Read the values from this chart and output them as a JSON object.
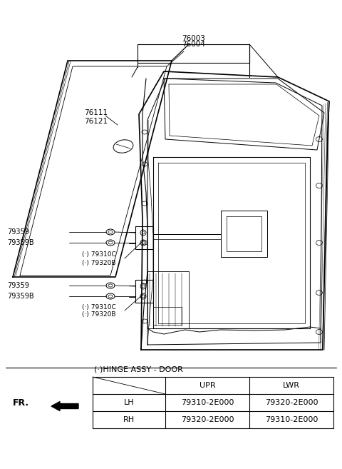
{
  "table_title": "(·)HINGE ASSY - DOOR",
  "table_headers": [
    "",
    "UPR",
    "LWR"
  ],
  "table_rows": [
    [
      "LH",
      "79310-2E000",
      "79320-2E000"
    ],
    [
      "RH",
      "79320-2E000",
      "79310-2E000"
    ]
  ],
  "fr_label": "FR.",
  "bg_color": "#ffffff",
  "lc": "#000000",
  "tc": "#000000",
  "part_76003": "76003",
  "part_76004": "76004",
  "part_76111": "76111",
  "part_76121": "76121",
  "upr_79359": "79359",
  "upr_79359B": "79359B",
  "upr_79310C": "(·) 79310C",
  "upr_79320B": "(·) 79320B",
  "lwr_79359": "79359",
  "lwr_79359B": "79359B",
  "lwr_79310C": "(·) 79310C",
  "lwr_79320B": "(·) 79320B"
}
